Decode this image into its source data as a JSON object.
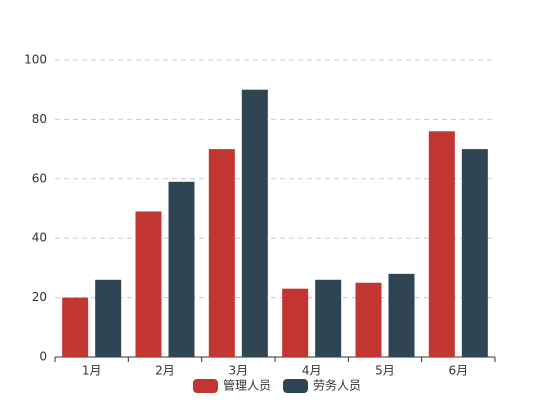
{
  "chart_data": {
    "type": "bar",
    "categories": [
      "1月",
      "2月",
      "3月",
      "4月",
      "5月",
      "6月"
    ],
    "series": [
      {
        "name": "管理人员",
        "color": "#c23531",
        "values": [
          20,
          49,
          70,
          23,
          25,
          76
        ]
      },
      {
        "name": "劳务人员",
        "color": "#2f4554",
        "values": [
          26,
          59,
          90,
          26,
          28,
          70
        ]
      }
    ],
    "ylim": [
      0,
      100
    ],
    "yticks": [
      0,
      20,
      40,
      60,
      80,
      100
    ],
    "grid": true,
    "legend": "bottom"
  }
}
